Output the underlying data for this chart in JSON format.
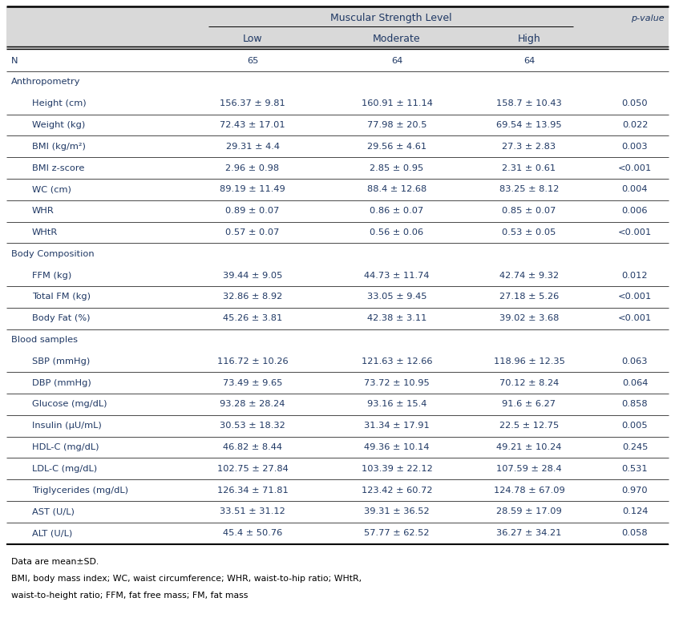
{
  "title": "Muscular Strength Level",
  "bg_color": "#ffffff",
  "header_bg_color": "#d9d9d9",
  "text_color": "#1f3864",
  "black": "#000000",
  "rows": [
    {
      "label": "N",
      "indent": 0,
      "section": false,
      "low": "65",
      "mod": "64",
      "high": "64",
      "pval": ""
    },
    {
      "label": "Anthropometry",
      "indent": 0,
      "section": true,
      "low": "",
      "mod": "",
      "high": "",
      "pval": ""
    },
    {
      "label": "Height (cm)",
      "indent": 1,
      "section": false,
      "low": "156.37 ± 9.81",
      "mod": "160.91 ± 11.14",
      "high": "158.7 ± 10.43",
      "pval": "0.050"
    },
    {
      "label": "Weight (kg)",
      "indent": 1,
      "section": false,
      "low": "72.43 ± 17.01",
      "mod": "77.98 ± 20.5",
      "high": "69.54 ± 13.95",
      "pval": "0.022"
    },
    {
      "label": "BMI (kg/m²)",
      "indent": 1,
      "section": false,
      "low": "29.31 ± 4.4",
      "mod": "29.56 ± 4.61",
      "high": "27.3 ± 2.83",
      "pval": "0.003"
    },
    {
      "label": "BMI z-score",
      "indent": 1,
      "section": false,
      "low": "2.96 ± 0.98",
      "mod": "2.85 ± 0.95",
      "high": "2.31 ± 0.61",
      "pval": "<0.001"
    },
    {
      "label": "WC (cm)",
      "indent": 1,
      "section": false,
      "low": "89.19 ± 11.49",
      "mod": "88.4 ± 12.68",
      "high": "83.25 ± 8.12",
      "pval": "0.004"
    },
    {
      "label": "WHR",
      "indent": 1,
      "section": false,
      "low": "0.89 ± 0.07",
      "mod": "0.86 ± 0.07",
      "high": "0.85 ± 0.07",
      "pval": "0.006"
    },
    {
      "label": "WHtR",
      "indent": 1,
      "section": false,
      "low": "0.57 ± 0.07",
      "mod": "0.56 ± 0.06",
      "high": "0.53 ± 0.05",
      "pval": "<0.001"
    },
    {
      "label": "Body Composition",
      "indent": 0,
      "section": true,
      "low": "",
      "mod": "",
      "high": "",
      "pval": ""
    },
    {
      "label": "FFM (kg)",
      "indent": 1,
      "section": false,
      "low": "39.44 ± 9.05",
      "mod": "44.73 ± 11.74",
      "high": "42.74 ± 9.32",
      "pval": "0.012"
    },
    {
      "label": "Total FM (kg)",
      "indent": 1,
      "section": false,
      "low": "32.86 ± 8.92",
      "mod": "33.05 ± 9.45",
      "high": "27.18 ± 5.26",
      "pval": "<0.001"
    },
    {
      "label": "Body Fat (%)",
      "indent": 1,
      "section": false,
      "low": "45.26 ± 3.81",
      "mod": "42.38 ± 3.11",
      "high": "39.02 ± 3.68",
      "pval": "<0.001"
    },
    {
      "label": "Blood samples",
      "indent": 0,
      "section": true,
      "low": "",
      "mod": "",
      "high": "",
      "pval": ""
    },
    {
      "label": "SBP (mmHg)",
      "indent": 1,
      "section": false,
      "low": "116.72 ± 10.26",
      "mod": "121.63 ± 12.66",
      "high": "118.96 ± 12.35",
      "pval": "0.063"
    },
    {
      "label": "DBP (mmHg)",
      "indent": 1,
      "section": false,
      "low": "73.49 ± 9.65",
      "mod": "73.72 ± 10.95",
      "high": "70.12 ± 8.24",
      "pval": "0.064"
    },
    {
      "label": "Glucose (mg/dL)",
      "indent": 1,
      "section": false,
      "low": "93.28 ± 28.24",
      "mod": "93.16 ± 15.4",
      "high": "91.6 ± 6.27",
      "pval": "0.858"
    },
    {
      "label": "Insulin (μU/mL)",
      "indent": 1,
      "section": false,
      "low": "30.53 ± 18.32",
      "mod": "31.34 ± 17.91",
      "high": "22.5 ± 12.75",
      "pval": "0.005"
    },
    {
      "label": "HDL-C (mg/dL)",
      "indent": 1,
      "section": false,
      "low": "46.82 ± 8.44",
      "mod": "49.36 ± 10.14",
      "high": "49.21 ± 10.24",
      "pval": "0.245"
    },
    {
      "label": "LDL-C (mg/dL)",
      "indent": 1,
      "section": false,
      "low": "102.75 ± 27.84",
      "mod": "103.39 ± 22.12",
      "high": "107.59 ± 28.4",
      "pval": "0.531"
    },
    {
      "label": "Triglycerides (mg/dL)",
      "indent": 1,
      "section": false,
      "low": "126.34 ± 71.81",
      "mod": "123.42 ± 60.72",
      "high": "124.78 ± 67.09",
      "pval": "0.970"
    },
    {
      "label": "AST (U/L)",
      "indent": 1,
      "section": false,
      "low": "33.51 ± 31.12",
      "mod": "39.31 ± 36.52",
      "high": "28.59 ± 17.09",
      "pval": "0.124"
    },
    {
      "label": "ALT (U/L)",
      "indent": 1,
      "section": false,
      "low": "45.4 ± 50.76",
      "mod": "57.77 ± 62.52",
      "high": "36.27 ± 34.21",
      "pval": "0.058"
    }
  ],
  "footnote1": "Data are mean±SD.",
  "footnote2": "BMI, body mass index; WC, waist circumference; WHR, waist-to-hip ratio; WHtR,",
  "footnote3": "waist-to-height ratio; FFM, fat free mass; FM, fat mass",
  "figwidth": 8.42,
  "figheight": 7.76,
  "dpi": 100
}
